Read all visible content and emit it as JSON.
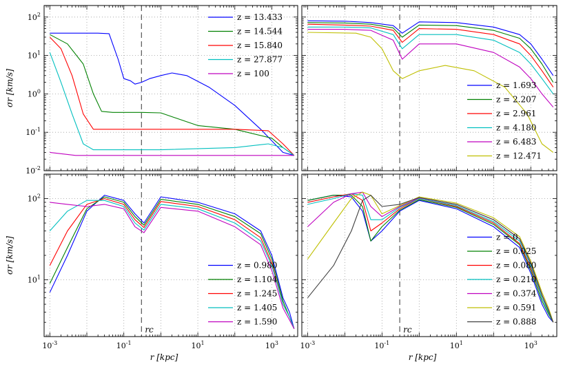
{
  "figure": {
    "x_label": "r [kpc]",
    "y_label": "σr [km/s]",
    "rc_label": "rc"
  },
  "chart_data": [
    {
      "type": "line",
      "panel": "top-left",
      "xscale": "log",
      "yscale": "log",
      "xlim": [
        0.0007,
        5000
      ],
      "ylim": [
        0.01,
        200
      ],
      "xticks": [
        "10^-3",
        "10^-1",
        "10^1",
        "10^3"
      ],
      "yticks": [
        "10^-2",
        "10^-1",
        "10^0",
        "10^1",
        "10^2"
      ],
      "xlabel": "",
      "ylabel": "σr [km/s]",
      "grid": true,
      "rc_line": 0.3,
      "legend_position": "top-right",
      "series": [
        {
          "name": "z = 13.433",
          "color": "#0000ff",
          "x": [
            0.001,
            0.02,
            0.04,
            0.05,
            0.07,
            0.1,
            0.15,
            0.2,
            0.3,
            0.5,
            1,
            2,
            5,
            20,
            100,
            500,
            1000,
            2000,
            4000
          ],
          "y": [
            38,
            38,
            37,
            20,
            8,
            2.5,
            2.2,
            1.8,
            2,
            2.5,
            3,
            3.5,
            3,
            1.5,
            0.5,
            0.12,
            0.06,
            0.03,
            0.025
          ]
        },
        {
          "name": "z = 14.544",
          "color": "#008000",
          "x": [
            0.001,
            0.003,
            0.008,
            0.015,
            0.025,
            0.05,
            0.1,
            0.3,
            1,
            10,
            100,
            1000,
            2000,
            4000
          ],
          "y": [
            35,
            20,
            6,
            1,
            0.35,
            0.33,
            0.33,
            0.33,
            0.32,
            0.15,
            0.12,
            0.07,
            0.04,
            0.025
          ]
        },
        {
          "name": "z = 15.840",
          "color": "#ff0000",
          "x": [
            0.001,
            0.002,
            0.004,
            0.008,
            0.015,
            0.05,
            1,
            100,
            800,
            2000,
            4000
          ],
          "y": [
            30,
            15,
            3,
            0.3,
            0.12,
            0.12,
            0.12,
            0.12,
            0.11,
            0.05,
            0.025
          ]
        },
        {
          "name": "z = 27.877",
          "color": "#00bfbf",
          "x": [
            0.001,
            0.002,
            0.004,
            0.008,
            0.015,
            0.03,
            1,
            100,
            800,
            2000,
            4000
          ],
          "y": [
            12,
            2,
            0.3,
            0.05,
            0.035,
            0.035,
            0.035,
            0.04,
            0.05,
            0.04,
            0.025
          ]
        },
        {
          "name": "z = 100",
          "color": "#bf00bf",
          "x": [
            0.001,
            0.005,
            0.1,
            10,
            4000
          ],
          "y": [
            0.03,
            0.025,
            0.025,
            0.025,
            0.025
          ]
        }
      ]
    },
    {
      "type": "line",
      "panel": "top-right",
      "xscale": "log",
      "yscale": "log",
      "xlim": [
        0.0007,
        5000
      ],
      "ylim": [
        0.01,
        200
      ],
      "xticks": [
        "10^-3",
        "10^-1",
        "10^1",
        "10^3"
      ],
      "yticks": [],
      "xlabel": "",
      "ylabel": "",
      "grid": true,
      "rc_line": 0.3,
      "legend_position": "bottom-right",
      "series": [
        {
          "name": "z = 1.693",
          "color": "#0000ff",
          "x": [
            0.001,
            0.01,
            0.05,
            0.2,
            0.35,
            1,
            10,
            100,
            500,
            1000,
            2000,
            4000
          ],
          "y": [
            80,
            78,
            72,
            60,
            38,
            75,
            72,
            55,
            35,
            20,
            8,
            3
          ]
        },
        {
          "name": "z = 2.207",
          "color": "#008000",
          "x": [
            0.001,
            0.01,
            0.05,
            0.2,
            0.35,
            1,
            10,
            100,
            500,
            1000,
            2000,
            4000
          ],
          "y": [
            72,
            70,
            65,
            52,
            30,
            62,
            60,
            45,
            28,
            15,
            6,
            2
          ]
        },
        {
          "name": "z = 2.961",
          "color": "#ff0000",
          "x": [
            0.001,
            0.01,
            0.05,
            0.2,
            0.35,
            1,
            10,
            100,
            500,
            1000,
            2000,
            4000
          ],
          "y": [
            65,
            62,
            58,
            45,
            22,
            50,
            48,
            35,
            20,
            10,
            4,
            1.5
          ]
        },
        {
          "name": "z = 4.180",
          "color": "#00bfbf",
          "x": [
            0.001,
            0.01,
            0.05,
            0.2,
            0.35,
            1,
            10,
            100,
            500,
            1000,
            2000,
            4000
          ],
          "y": [
            55,
            55,
            52,
            35,
            15,
            35,
            35,
            25,
            12,
            6,
            2.5,
            1
          ]
        },
        {
          "name": "z = 6.483",
          "color": "#bf00bf",
          "x": [
            0.001,
            0.01,
            0.05,
            0.2,
            0.35,
            1,
            10,
            100,
            500,
            1000,
            2000,
            4000
          ],
          "y": [
            48,
            48,
            45,
            25,
            8,
            20,
            20,
            12,
            5,
            2.5,
            1,
            0.45
          ]
        },
        {
          "name": "z = 12.471",
          "color": "#bfbf00",
          "x": [
            0.001,
            0.02,
            0.05,
            0.1,
            0.2,
            0.35,
            1,
            5,
            30,
            200,
            800,
            2000,
            4000
          ],
          "y": [
            40,
            38,
            30,
            15,
            4,
            2.5,
            4,
            5.5,
            4,
            1.5,
            0.3,
            0.05,
            0.03
          ]
        }
      ]
    },
    {
      "type": "line",
      "panel": "bottom-left",
      "xscale": "log",
      "yscale": "log",
      "xlim": [
        0.0007,
        5000
      ],
      "ylim": [
        2,
        200
      ],
      "xticks": [
        "10^-3",
        "10^-1",
        "10^1",
        "10^3"
      ],
      "yticks": [
        "10^1",
        "10^2"
      ],
      "xlabel": "r [kpc]",
      "ylabel": "σr [km/s]",
      "grid": true,
      "rc_line": 0.3,
      "legend_position": "bottom-right",
      "series": [
        {
          "name": "z = 0.980",
          "color": "#0000ff",
          "x": [
            0.001,
            0.003,
            0.01,
            0.03,
            0.1,
            0.2,
            0.35,
            1,
            10,
            100,
            500,
            1000,
            2000,
            3000,
            4000
          ],
          "y": [
            7,
            20,
            70,
            110,
            95,
            65,
            50,
            105,
            90,
            65,
            40,
            20,
            6,
            4,
            2.5
          ]
        },
        {
          "name": "z = 1.104",
          "color": "#008000",
          "x": [
            0.001,
            0.003,
            0.01,
            0.03,
            0.1,
            0.2,
            0.35,
            1,
            10,
            100,
            500,
            1000,
            2000,
            3000,
            4000
          ],
          "y": [
            9,
            25,
            75,
            105,
            90,
            60,
            47,
            98,
            85,
            60,
            37,
            18,
            5.5,
            3.5,
            2.5
          ]
        },
        {
          "name": "z = 1.245",
          "color": "#ff0000",
          "x": [
            0.001,
            0.003,
            0.01,
            0.03,
            0.1,
            0.2,
            0.35,
            1,
            10,
            100,
            500,
            1000,
            2000,
            3000,
            4000
          ],
          "y": [
            15,
            40,
            85,
            100,
            85,
            55,
            44,
            92,
            80,
            55,
            33,
            16,
            5,
            3.5,
            2.5
          ]
        },
        {
          "name": "z = 1.405",
          "color": "#00bfbf",
          "x": [
            0.001,
            0.003,
            0.01,
            0.03,
            0.1,
            0.2,
            0.35,
            1,
            10,
            100,
            500,
            1000,
            2000,
            3000,
            4000
          ],
          "y": [
            40,
            70,
            95,
            95,
            80,
            50,
            41,
            85,
            75,
            50,
            30,
            15,
            5,
            3.5,
            2.5
          ]
        },
        {
          "name": "z = 1.590",
          "color": "#bf00bf",
          "x": [
            0.001,
            0.003,
            0.01,
            0.03,
            0.1,
            0.2,
            0.35,
            1,
            10,
            100,
            500,
            1000,
            2000,
            3000,
            4000
          ],
          "y": [
            90,
            85,
            80,
            85,
            75,
            45,
            38,
            78,
            70,
            45,
            27,
            13,
            4.5,
            3.2,
            2.5
          ]
        }
      ]
    },
    {
      "type": "line",
      "panel": "bottom-right",
      "xscale": "log",
      "yscale": "log",
      "xlim": [
        0.0007,
        5000
      ],
      "ylim": [
        2,
        200
      ],
      "xticks": [
        "10^-3",
        "10^-1",
        "10^1",
        "10^3"
      ],
      "yticks": [],
      "xlabel": "r [kpc]",
      "ylabel": "",
      "grid": true,
      "rc_line": 0.3,
      "legend_position": "bottom-right",
      "series": [
        {
          "name": "z = 0",
          "color": "#0000ff",
          "x": [
            0.001,
            0.005,
            0.015,
            0.03,
            0.05,
            0.1,
            0.3,
            1,
            10,
            100,
            500,
            1000,
            2000,
            3000,
            4000
          ],
          "y": [
            95,
            110,
            105,
            70,
            30,
            40,
            70,
            95,
            75,
            45,
            25,
            12,
            5,
            3.5,
            3
          ]
        },
        {
          "name": "z = 0.025",
          "color": "#008000",
          "x": [
            0.001,
            0.005,
            0.015,
            0.03,
            0.05,
            0.1,
            0.3,
            1,
            10,
            100,
            500,
            1000,
            2000,
            3000,
            4000
          ],
          "y": [
            95,
            110,
            110,
            80,
            30,
            45,
            72,
            97,
            78,
            48,
            27,
            13,
            5.5,
            3.8,
            3
          ]
        },
        {
          "name": "z = 0.080",
          "color": "#ff0000",
          "x": [
            0.001,
            0.005,
            0.015,
            0.03,
            0.05,
            0.1,
            0.3,
            1,
            10,
            100,
            500,
            1000,
            2000,
            3000,
            4000
          ],
          "y": [
            90,
            105,
            115,
            95,
            40,
            50,
            75,
            100,
            80,
            50,
            28,
            14,
            6,
            4,
            3
          ]
        },
        {
          "name": "z = 0.210",
          "color": "#00bfbf",
          "x": [
            0.001,
            0.005,
            0.015,
            0.03,
            0.05,
            0.1,
            0.3,
            1,
            10,
            100,
            500,
            1000,
            2000,
            3000,
            4000
          ],
          "y": [
            85,
            100,
            115,
            110,
            55,
            55,
            78,
            100,
            82,
            52,
            30,
            15,
            6,
            4,
            3
          ]
        },
        {
          "name": "z = 0.374",
          "color": "#bf00bf",
          "x": [
            0.001,
            0.005,
            0.015,
            0.03,
            0.05,
            0.1,
            0.3,
            1,
            10,
            100,
            500,
            1000,
            2000,
            3000,
            4000
          ],
          "y": [
            45,
            90,
            115,
            120,
            80,
            60,
            80,
            102,
            85,
            55,
            32,
            16,
            6.5,
            4.2,
            3
          ]
        },
        {
          "name": "z = 0.591",
          "color": "#bfbf00",
          "x": [
            0.001,
            0.005,
            0.015,
            0.03,
            0.05,
            0.1,
            0.3,
            1,
            10,
            100,
            500,
            1000,
            2000,
            3000,
            4000
          ],
          "y": [
            18,
            50,
            100,
            120,
            110,
            65,
            82,
            105,
            88,
            58,
            34,
            17,
            7,
            4.5,
            3
          ]
        },
        {
          "name": "z = 0.888",
          "color": "#404040",
          "x": [
            0.001,
            0.005,
            0.015,
            0.03,
            0.05,
            0.1,
            0.3,
            1,
            10,
            100,
            500,
            1000,
            2000,
            3000,
            4000
          ],
          "y": [
            6,
            15,
            40,
            95,
            110,
            80,
            85,
            103,
            85,
            55,
            32,
            16,
            6.5,
            4.2,
            3
          ]
        }
      ]
    }
  ]
}
